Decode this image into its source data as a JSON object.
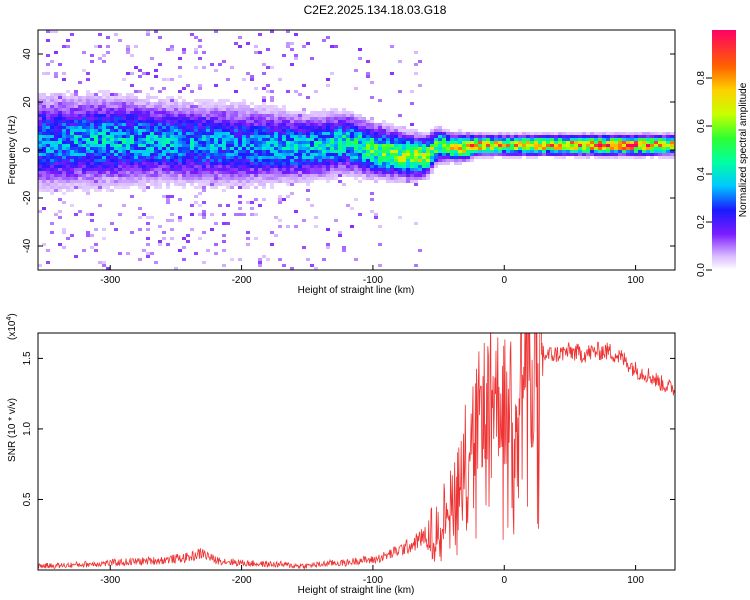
{
  "title": "C2E2.2025.134.18.03.G18",
  "chart_data": [
    {
      "type": "heatmap",
      "xlabel": "Height of straight line (km)",
      "ylabel": "Frequency (Hz)",
      "xlim": [
        -355,
        130
      ],
      "ylim": [
        -50,
        50
      ],
      "xticks": [
        -300,
        -200,
        -100,
        0,
        100
      ],
      "yticks": [
        -40,
        -20,
        0,
        20,
        40
      ],
      "xtick_labels": [
        "-300",
        "-200",
        "-100",
        "0",
        "100"
      ],
      "ytick_labels": [
        "-40",
        "-20",
        "0",
        "20",
        "40"
      ],
      "colorbar": {
        "label": "Normalized spectral amplitude",
        "range": [
          0,
          1
        ],
        "ticks": [
          0.0,
          0.2,
          0.4,
          0.6,
          0.8
        ],
        "tick_labels": [
          "0.0",
          "0.2",
          "0.4",
          "0.6",
          "0.8"
        ]
      },
      "ridge": {
        "height_km": [
          -355,
          -300,
          -250,
          -200,
          -150,
          -120,
          -100,
          -80,
          -60,
          -50,
          -40,
          -30,
          -20,
          0,
          50,
          100,
          130
        ],
        "frequency_hz": [
          3,
          4,
          3,
          2,
          1,
          3,
          0,
          -2,
          -3,
          2,
          1,
          1,
          2,
          2,
          2,
          2,
          2
        ],
        "width_hz": [
          14,
          13,
          12,
          12,
          10,
          9,
          8,
          7,
          6,
          5,
          4,
          4,
          3,
          3,
          3,
          3,
          3
        ],
        "peak_amplitude": [
          0.35,
          0.4,
          0.38,
          0.35,
          0.4,
          0.45,
          0.55,
          0.65,
          0.7,
          0.6,
          0.75,
          0.8,
          0.85,
          0.8,
          0.9,
          0.95,
          0.8
        ]
      }
    },
    {
      "type": "line",
      "xlabel": "Height of straight line (km)",
      "ylabel": "SNR (10 * v/v)",
      "ylabel_scale": "(x10",
      "ylabel_scale_exp": "4",
      "ylabel_scale_close": ")",
      "xlim": [
        -355,
        130
      ],
      "ylim": [
        0,
        1.68
      ],
      "xticks": [
        -300,
        -200,
        -100,
        0,
        100
      ],
      "yticks": [
        0.5,
        1.0,
        1.5
      ],
      "xtick_labels": [
        "-300",
        "-200",
        "-100",
        "0",
        "100"
      ],
      "ytick_labels": [
        "0.5",
        "1.0",
        "1.5"
      ],
      "color": "#ee3333",
      "series": [
        {
          "x": [
            -355,
            -340,
            -320,
            -300,
            -280,
            -260,
            -240,
            -230,
            -220,
            -200,
            -180,
            -170,
            -160,
            -150,
            -140,
            -130,
            -120,
            -110,
            -100,
            -90,
            -80,
            -70,
            -60,
            -55,
            -50,
            -45,
            -40,
            -35,
            -30,
            -25,
            -20,
            -15,
            -10,
            -5,
            0,
            5,
            10,
            15,
            20,
            30,
            40,
            50,
            60,
            70,
            80,
            90,
            100,
            110,
            120,
            130
          ],
          "y": [
            0.03,
            0.03,
            0.04,
            0.05,
            0.06,
            0.07,
            0.09,
            0.12,
            0.07,
            0.05,
            0.04,
            0.04,
            0.03,
            0.03,
            0.04,
            0.05,
            0.05,
            0.07,
            0.07,
            0.1,
            0.14,
            0.18,
            0.25,
            0.3,
            0.35,
            0.45,
            0.55,
            0.7,
            0.85,
            1.0,
            1.1,
            1.2,
            1.3,
            1.25,
            1.2,
            1.28,
            1.35,
            1.38,
            1.45,
            1.52,
            1.53,
            1.55,
            1.53,
            1.55,
            1.55,
            1.5,
            1.42,
            1.38,
            1.32,
            1.28
          ]
        }
      ]
    }
  ]
}
